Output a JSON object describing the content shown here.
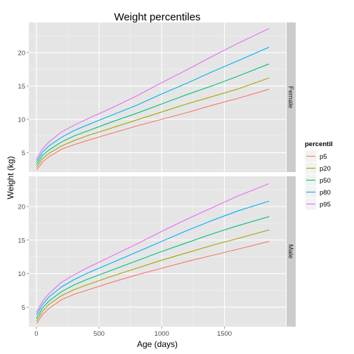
{
  "chart_data": {
    "type": "line",
    "title": "Weight percentiles",
    "xlabel": "Age (days)",
    "ylabel": "Weight (kg)",
    "xlim": [
      -60,
      1990
    ],
    "x_ticks": [
      0,
      500,
      1000,
      1500
    ],
    "x_tick_labels": [
      "0",
      "500",
      "1000",
      "1500"
    ],
    "grid": true,
    "legend": {
      "title": "percentil",
      "position": "right"
    },
    "facets": [
      {
        "label": "Female",
        "ylim": [
          2.1,
          24.5
        ],
        "y_ticks": [
          5,
          10,
          15,
          20
        ],
        "y_tick_labels": [
          "5",
          "10",
          "15",
          "20"
        ],
        "x": [
          0,
          50,
          100,
          200,
          300,
          400,
          600,
          800,
          1000,
          1200,
          1400,
          1600,
          1856
        ],
        "series": [
          {
            "name": "p5",
            "color": "#F8766D",
            "values": [
              2.4,
              3.6,
              4.4,
              5.5,
              6.2,
              6.8,
              7.9,
              9.0,
              10.0,
              11.0,
              12.1,
              13.1,
              14.5
            ]
          },
          {
            "name": "p20",
            "color": "#A3A500",
            "values": [
              2.8,
              4.1,
              4.9,
              6.0,
              6.8,
              7.5,
              8.7,
              9.9,
              11.1,
              12.3,
              13.4,
              14.5,
              16.2
            ]
          },
          {
            "name": "p50",
            "color": "#00BF7D",
            "values": [
              3.2,
              4.6,
              5.4,
              6.6,
              7.5,
              8.2,
              9.6,
              10.9,
              12.3,
              13.7,
              15.0,
              16.4,
              18.3
            ]
          },
          {
            "name": "p80",
            "color": "#00B0F6",
            "values": [
              3.6,
              5.1,
              6.0,
              7.3,
              8.3,
              9.1,
              10.6,
              12.1,
              13.8,
              15.4,
              17.1,
              18.7,
              20.8
            ]
          },
          {
            "name": "p95",
            "color": "#E76BF3",
            "values": [
              4.0,
              5.6,
              6.6,
              8.1,
              9.1,
              10.0,
              11.7,
              13.5,
              15.5,
              17.4,
              19.4,
              21.3,
              23.6
            ]
          }
        ]
      },
      {
        "label": "Male",
        "ylim": [
          2.1,
          24.5
        ],
        "y_ticks": [
          5,
          10,
          15,
          20
        ],
        "y_tick_labels": [
          "5",
          "10",
          "15",
          "20"
        ],
        "x": [
          0,
          50,
          100,
          200,
          300,
          400,
          600,
          800,
          1000,
          1200,
          1400,
          1600,
          1856
        ],
        "series": [
          {
            "name": "p5",
            "color": "#F8766D",
            "values": [
              2.5,
              3.9,
              4.8,
              6.1,
              6.9,
              7.5,
              8.7,
              9.8,
              10.8,
              11.8,
              12.7,
              13.6,
              14.8
            ]
          },
          {
            "name": "p20",
            "color": "#A3A500",
            "values": [
              2.9,
              4.4,
              5.4,
              6.7,
              7.6,
              8.3,
              9.6,
              10.8,
              12.0,
              13.1,
              14.2,
              15.2,
              16.5
            ]
          },
          {
            "name": "p50",
            "color": "#00BF7D",
            "values": [
              3.3,
              4.9,
              5.9,
              7.3,
              8.3,
              9.1,
              10.5,
              11.9,
              13.3,
              14.6,
              15.9,
              17.1,
              18.5
            ]
          },
          {
            "name": "p80",
            "color": "#00B0F6",
            "values": [
              3.8,
              5.4,
              6.5,
              8.0,
              9.1,
              10.0,
              11.6,
              13.2,
              14.8,
              16.4,
              17.9,
              19.3,
              20.8
            ]
          },
          {
            "name": "p95",
            "color": "#E76BF3",
            "values": [
              4.2,
              5.9,
              7.0,
              8.7,
              9.8,
              10.8,
              12.6,
              14.4,
              16.3,
              18.1,
              19.8,
              21.5,
              23.4
            ]
          }
        ]
      }
    ]
  }
}
